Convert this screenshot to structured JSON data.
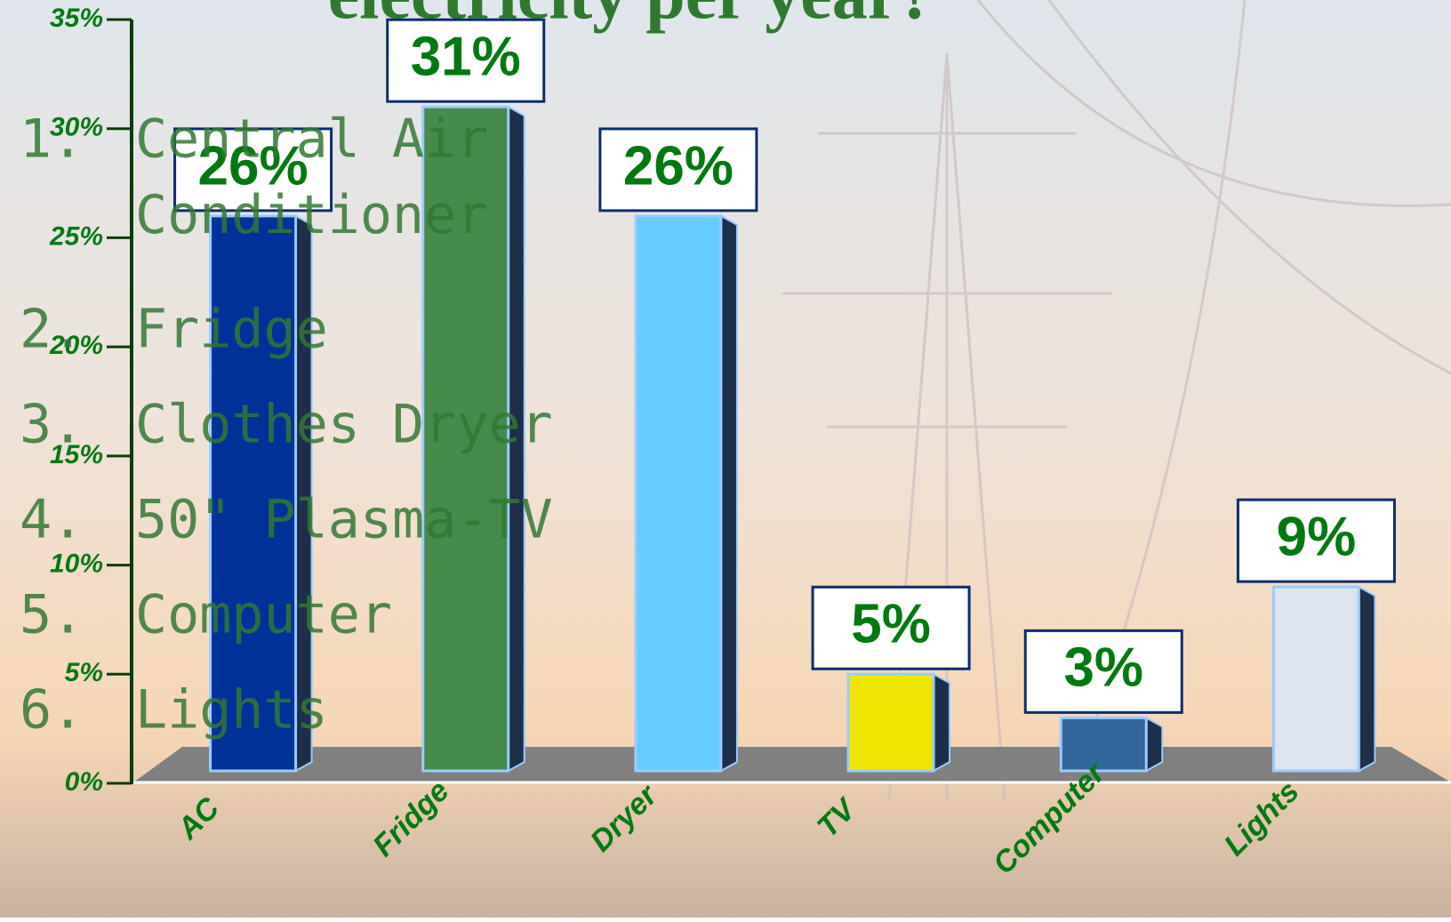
{
  "chart_data": {
    "type": "bar",
    "title": "electricity per year?",
    "categories": [
      "AC",
      "Fridge",
      "Dryer",
      "TV",
      "Computer",
      "Lights"
    ],
    "values": [
      26,
      31,
      26,
      5,
      3,
      9
    ],
    "value_labels": [
      "26%",
      "31%",
      "26%",
      "5%",
      "3%",
      "9%"
    ],
    "colors": [
      "#003399",
      "#458b4a",
      "#66ccff",
      "#eee600",
      "#336699",
      "#dde4f0"
    ],
    "ylim": [
      0,
      35
    ],
    "yticks": [
      {
        "value": 0,
        "label": "0%"
      },
      {
        "value": 5,
        "label": "5%"
      },
      {
        "value": 10,
        "label": "10%"
      },
      {
        "value": 15,
        "label": "15%"
      },
      {
        "value": 20,
        "label": "20%"
      },
      {
        "value": 25,
        "label": "25%"
      },
      {
        "value": 30,
        "label": "30%"
      },
      {
        "value": 35,
        "label": "35%"
      }
    ],
    "annotations": [
      {
        "number": "1.",
        "lines": [
          "Central Air",
          "Conditioner"
        ]
      },
      {
        "number": "2.",
        "lines": [
          "Fridge"
        ]
      },
      {
        "number": "3.",
        "lines": [
          "Clothes Dryer"
        ]
      },
      {
        "number": "4.",
        "lines": [
          "50\" Plasma-TV"
        ]
      },
      {
        "number": "5.",
        "lines": [
          "Computer"
        ]
      },
      {
        "number": "6.",
        "lines": [
          "Lights"
        ]
      }
    ]
  }
}
